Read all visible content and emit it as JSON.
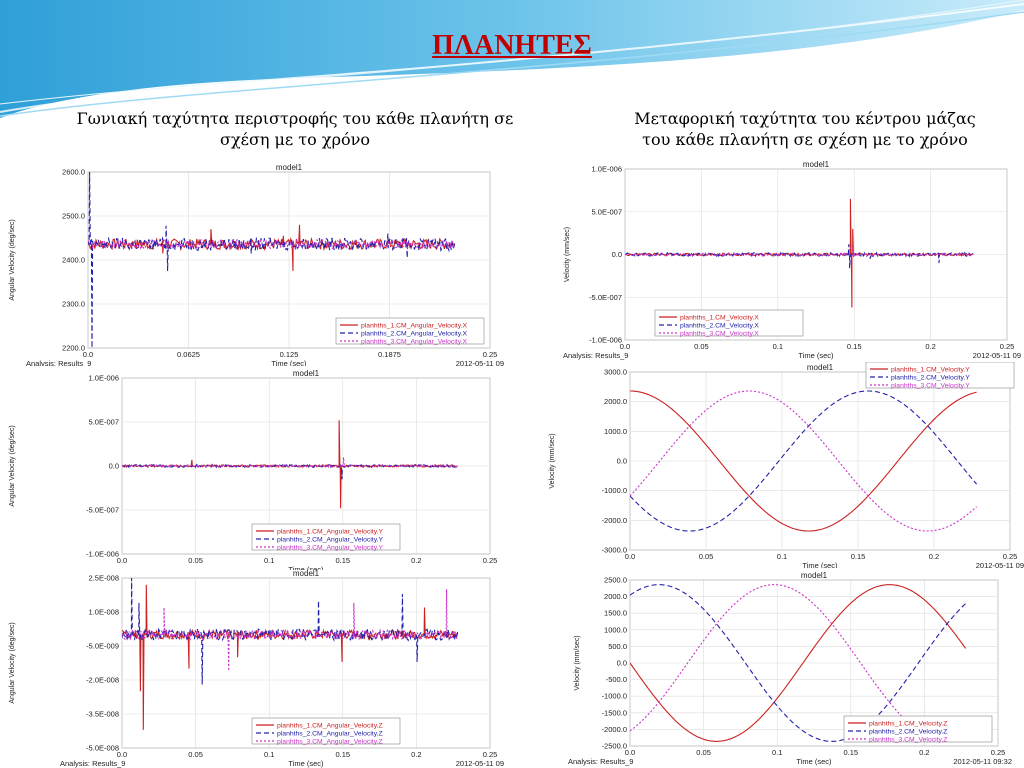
{
  "page": {
    "title": "ΠΛΑΝΗΤΕΣ",
    "caption_left": "Γωνιακή ταχύτητα περιστροφής του κάθε πλανήτη σε σχέση με το χρόνο",
    "caption_right": "Μεταφορική ταχύτητα του κέντρου μάζας του κάθε πλανήτη σε σχέση με το χρόνο",
    "colors": {
      "title": "#c00000",
      "banner": "#3aa6dd",
      "s1": "#cc2222",
      "s2": "#2222aa",
      "s3": "#cc33cc"
    }
  },
  "chart_data": [
    {
      "id": "angvel-x",
      "type": "line",
      "title": "model1",
      "xlabel": "Time (sec)",
      "ylabel": "Angular Velocity (deg/sec)",
      "xlim": [
        0,
        0.25
      ],
      "ylim": [
        2200,
        2600
      ],
      "xticks": [
        "0.0",
        "0.0625",
        "0.125",
        "0.1875",
        "0.25"
      ],
      "yticks": [
        "2200.0",
        "2300.0",
        "2400.0",
        "2500.0",
        "2600.0"
      ],
      "footer_left": "Analysis:  Results_9",
      "footer_right": "2012-05-11 09",
      "legend_pos": "bottom-right",
      "series": [
        {
          "name": "planhths_1.CM_Angular_Velocity.X",
          "style": "solid",
          "color": "#cc2222",
          "pattern": "noise",
          "mean": 2436,
          "amp": 12,
          "spikes": [
            [
              0.046,
              2415
            ],
            [
              0.076,
              2470
            ],
            [
              0.121,
              2455
            ],
            [
              0.127,
              2375
            ],
            [
              0.131,
              2480
            ]
          ]
        },
        {
          "name": "planhths_2.CM_Angular_Velocity.X",
          "style": "dashed",
          "color": "#2222aa",
          "pattern": "noise",
          "mean": 2436,
          "amp": 14,
          "spikes": [
            [
              0.0005,
              2600
            ],
            [
              0.002,
              2200
            ],
            [
              0.048,
              2478
            ],
            [
              0.049,
              2375
            ],
            [
              0.101,
              2415
            ],
            [
              0.186,
              2460
            ],
            [
              0.198,
              2405
            ]
          ]
        },
        {
          "name": "planhths_3.CM_Angular_Velocity.X",
          "style": "dotted",
          "color": "#cc33cc",
          "pattern": "noise",
          "mean": 2436,
          "amp": 10,
          "spikes": []
        }
      ]
    },
    {
      "id": "transvel-x",
      "type": "line",
      "title": "model1",
      "xlabel": "Time (sec)",
      "ylabel": "Velocity (mm/sec)",
      "xlim": [
        0,
        0.25
      ],
      "ylim": [
        -1e-06,
        1e-06
      ],
      "xticks": [
        "0.0",
        "0.05",
        "0.1",
        "0.15",
        "0.2",
        "0.25"
      ],
      "yticks": [
        "-1.0E-006",
        "-5.0E-007",
        "0.0",
        "5.0E-007",
        "1.0E-006"
      ],
      "footer_left": "Analysis:  Results_9",
      "footer_right": "2012-05-11 09",
      "legend_pos": "bottom-left",
      "series": [
        {
          "name": "planhths_1.CM_Velocity.X",
          "style": "solid",
          "color": "#cc2222",
          "pattern": "noise",
          "mean": 0,
          "amp": 1.5e-08,
          "spikes": [
            [
              0.147,
              6.5e-07
            ],
            [
              0.148,
              -6.2e-07
            ],
            [
              0.1485,
              3e-07
            ]
          ]
        },
        {
          "name": "planhths_2.CM_Velocity.X",
          "style": "dashed",
          "color": "#2222aa",
          "pattern": "noise",
          "mean": 0,
          "amp": 2e-08,
          "spikes": [
            [
              0.146,
              1.2e-07
            ],
            [
              0.1465,
              -1.6e-07
            ],
            [
              0.16,
              -5e-08
            ],
            [
              0.205,
              -1e-07
            ]
          ]
        },
        {
          "name": "planhths_3.CM_Velocity.X",
          "style": "dotted",
          "color": "#cc33cc",
          "pattern": "noise",
          "mean": 0,
          "amp": 1.5e-08,
          "spikes": [
            [
              0.149,
              1e-07
            ]
          ]
        }
      ]
    },
    {
      "id": "angvel-y",
      "type": "line",
      "title": "model1",
      "xlabel": "Time (sec)",
      "ylabel": "Angular Velocity (deg/sec)",
      "xlim": [
        0,
        0.25
      ],
      "ylim": [
        -1e-06,
        1e-06
      ],
      "xticks": [
        "0.0",
        "0.05",
        "0.1",
        "0.15",
        "0.2",
        "0.25"
      ],
      "yticks": [
        "-1.0E-006",
        "-5.0E-007",
        "0.0",
        "5.0E-007",
        "1.0E-006"
      ],
      "footer_left": "",
      "footer_right": "",
      "legend_pos": "bottom-center",
      "series": [
        {
          "name": "planhths_1.CM_Angular_Velocity.Y",
          "style": "solid",
          "color": "#cc2222",
          "pattern": "noise",
          "mean": 0,
          "amp": 1.2e-08,
          "spikes": [
            [
              0.047,
              7e-08
            ],
            [
              0.147,
              5.2e-07
            ],
            [
              0.148,
              -4.8e-07
            ]
          ]
        },
        {
          "name": "planhths_2.CM_Angular_Velocity.Y",
          "style": "dashed",
          "color": "#2222aa",
          "pattern": "noise",
          "mean": 0,
          "amp": 1.5e-08,
          "spikes": [
            [
              0.149,
              -1.5e-07
            ]
          ]
        },
        {
          "name": "planhths_3.CM_Angular_Velocity.Y",
          "style": "dotted",
          "color": "#cc33cc",
          "pattern": "noise",
          "mean": 0,
          "amp": 1.2e-08,
          "spikes": [
            [
              0.15,
              1e-07
            ]
          ]
        }
      ]
    },
    {
      "id": "transvel-y",
      "type": "line",
      "title": "model1",
      "xlabel": "Time (sec)",
      "ylabel": "Velocity (mm/sec)",
      "xlim": [
        0,
        0.25
      ],
      "ylim": [
        -3000,
        3000
      ],
      "xticks": [
        "0.0",
        "0.05",
        "0.1",
        "0.15",
        "0.2",
        "0.25"
      ],
      "yticks": [
        "-3000.0",
        "-2000.0",
        "-1000.0",
        "0.0",
        "1000.0",
        "2000.0",
        "3000.0"
      ],
      "footer_left": "",
      "footer_right": "2012-05-11 09",
      "legend_pos": "top-right",
      "series": [
        {
          "name": "planhths_1.CM_Velocity.Y",
          "style": "solid",
          "color": "#cc2222",
          "pattern": "cos",
          "amplitude": 2360,
          "period": 0.235,
          "phase": 0,
          "tmax": 0.228
        },
        {
          "name": "planhths_2.CM_Velocity.Y",
          "style": "dashed",
          "color": "#2222aa",
          "pattern": "cos",
          "amplitude": 2360,
          "period": 0.235,
          "phase": 2.094,
          "tmax": 0.228
        },
        {
          "name": "planhths_3.CM_Velocity.Y",
          "style": "dotted",
          "color": "#cc33cc",
          "pattern": "cos",
          "amplitude": 2360,
          "period": 0.235,
          "phase": 4.189,
          "tmax": 0.228
        }
      ]
    },
    {
      "id": "angvel-z",
      "type": "line",
      "title": "model1",
      "xlabel": "Time (sec)",
      "ylabel": "Angular Velocity (deg/sec)",
      "xlim": [
        0,
        0.25
      ],
      "ylim": [
        -5e-08,
        2.5e-08
      ],
      "xticks": [
        "0.0",
        "0.05",
        "0.1",
        "0.15",
        "0.2",
        "0.25"
      ],
      "yticks": [
        "-5.0E-008",
        "-3.5E-008",
        "-2.0E-008",
        "-5.0E-009",
        "1.0E-008",
        "2.5E-008"
      ],
      "footer_left": "Analysis:  Results_9",
      "footer_right": "2012-05-11 09",
      "legend_pos": "bottom-center",
      "series": [
        {
          "name": "planhths_1.CM_Angular_Velocity.Z",
          "style": "solid",
          "color": "#cc2222",
          "pattern": "noise",
          "mean": 0,
          "amp": 2e-09,
          "spikes": [
            [
              0.012,
              -2.5e-08
            ],
            [
              0.014,
              -4.2e-08
            ],
            [
              0.016,
              2.2e-08
            ],
            [
              0.045,
              -1.5e-08
            ],
            [
              0.078,
              -1e-08
            ],
            [
              0.149,
              -1.2e-08
            ],
            [
              0.205,
              1.2e-08
            ]
          ]
        },
        {
          "name": "planhths_2.CM_Angular_Velocity.Z",
          "style": "dashed",
          "color": "#2222aa",
          "pattern": "noise",
          "mean": 0,
          "amp": 2.5e-09,
          "spikes": [
            [
              0.006,
              2.5e-08
            ],
            [
              0.011,
              1.4e-08
            ],
            [
              0.054,
              -2.2e-08
            ],
            [
              0.133,
              1.5e-08
            ],
            [
              0.19,
              1.8e-08
            ],
            [
              0.2,
              -1.2e-08
            ]
          ]
        },
        {
          "name": "planhths_3.CM_Angular_Velocity.Z",
          "style": "dotted",
          "color": "#cc33cc",
          "pattern": "noise",
          "mean": 0,
          "amp": 2e-09,
          "spikes": [
            [
              0.028,
              1.2e-08
            ],
            [
              0.072,
              -1.6e-08
            ],
            [
              0.157,
              1.4e-08
            ],
            [
              0.22,
              2e-08
            ]
          ]
        }
      ]
    },
    {
      "id": "transvel-z",
      "type": "line",
      "title": "model1",
      "xlabel": "Time (sec)",
      "ylabel": "Velocity (mm/sec)",
      "xlim": [
        0,
        0.25
      ],
      "ylim": [
        -2500,
        2500
      ],
      "xticks": [
        "0.0",
        "0.05",
        "0.1",
        "0.15",
        "0.2",
        "0.25"
      ],
      "yticks": [
        "-2500.0",
        "-2000.0",
        "-1500.0",
        "-1000.0",
        "-500.0",
        "0.0",
        "500.0",
        "1000.0",
        "1500.0",
        "2000.0",
        "2500.0"
      ],
      "footer_left": "Analysis:  Results_9",
      "footer_right": "2012-05-11 09:32",
      "legend_pos": "bottom-right",
      "series": [
        {
          "name": "planhths_1.CM_Velocity.Z",
          "style": "solid",
          "color": "#cc2222",
          "pattern": "sin",
          "amplitude": 2360,
          "period": 0.235,
          "phase": 3.1416,
          "tmax": 0.228
        },
        {
          "name": "planhths_2.CM_Velocity.Z",
          "style": "dashed",
          "color": "#2222aa",
          "pattern": "sin",
          "amplitude": 2360,
          "period": 0.235,
          "phase": 1.047,
          "tmax": 0.228
        },
        {
          "name": "planhths_3.CM_Velocity.Z",
          "style": "dotted",
          "color": "#cc33cc",
          "pattern": "sin",
          "amplitude": 2360,
          "period": 0.235,
          "phase": -1.047,
          "tmax": 0.228
        }
      ]
    }
  ]
}
